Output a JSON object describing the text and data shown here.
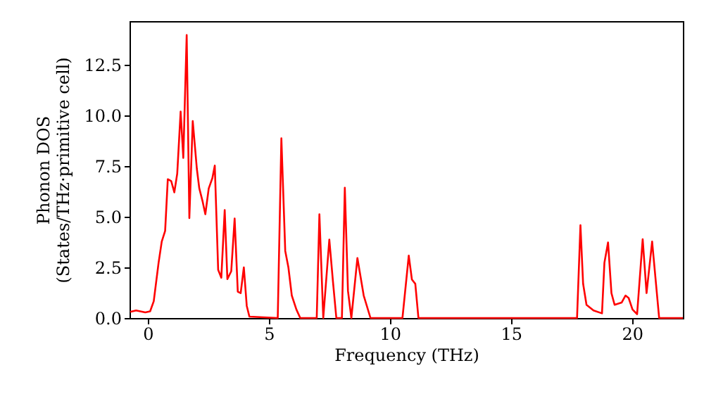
{
  "chart_data": {
    "type": "line",
    "xlabel": "Frequency (THz)",
    "ylabel": "Phonon DOS\n(States/THz·primitive cell)",
    "x": [
      -0.72,
      -0.48,
      -0.1,
      0.1,
      0.25,
      0.45,
      0.58,
      0.72,
      0.83,
      0.97,
      1.1,
      1.22,
      1.36,
      1.47,
      1.61,
      1.72,
      1.86,
      2.03,
      2.13,
      2.27,
      2.38,
      2.52,
      2.67,
      2.77,
      2.91,
      3.04,
      3.18,
      3.29,
      3.45,
      3.59,
      3.72,
      3.84,
      3.97,
      4.09,
      4.2,
      5.37,
      5.52,
      5.68,
      5.81,
      5.95,
      6.14,
      6.3,
      6.98,
      7.09,
      7.25,
      7.5,
      7.65,
      7.79,
      8.02,
      8.14,
      8.27,
      8.41,
      8.66,
      8.92,
      9.2,
      10.52,
      10.78,
      10.91,
      11.05,
      11.18,
      17.73,
      17.87,
      17.98,
      18.12,
      18.41,
      18.76,
      18.86,
      19.01,
      19.15,
      19.28,
      19.57,
      19.73,
      19.86,
      20.02,
      20.21,
      20.44,
      20.6,
      20.83,
      21.12,
      22.1
    ],
    "series": [
      {
        "color": "#ff0000",
        "values": [
          0.3,
          0.37,
          0.28,
          0.33,
          0.83,
          2.73,
          3.77,
          4.3,
          6.85,
          6.76,
          6.2,
          7.13,
          10.19,
          7.9,
          13.96,
          4.93,
          9.72,
          7.36,
          6.4,
          5.74,
          5.12,
          6.39,
          6.9,
          7.52,
          2.38,
          1.99,
          5.33,
          1.92,
          2.31,
          4.91,
          1.3,
          1.23,
          2.5,
          0.6,
          0.07,
          0,
          8.87,
          3.31,
          2.5,
          1.11,
          0.42,
          0,
          0,
          5.12,
          0,
          3.87,
          1.8,
          0,
          0,
          6.43,
          1.34,
          0,
          2.96,
          1.11,
          0,
          0,
          3.08,
          1.9,
          1.69,
          0,
          0,
          4.58,
          1.69,
          0.65,
          0.37,
          0.23,
          2.73,
          3.73,
          1.23,
          0.65,
          0.76,
          1.11,
          0.99,
          0.42,
          0.19,
          3.89,
          1.23,
          3.77,
          0,
          0
        ]
      }
    ],
    "xlim": [
      -0.75,
      22.1
    ],
    "xticks": [
      0,
      5,
      10,
      15,
      20
    ],
    "ylim": [
      0,
      14.65
    ],
    "yticks": [
      {
        "value": 0,
        "label": "0.0"
      },
      2.5,
      {
        "value": 5,
        "label": "5.0"
      },
      7.5,
      {
        "value": 10,
        "label": "10.0"
      },
      12.5
    ],
    "marker": "none",
    "line_style": "solid"
  }
}
